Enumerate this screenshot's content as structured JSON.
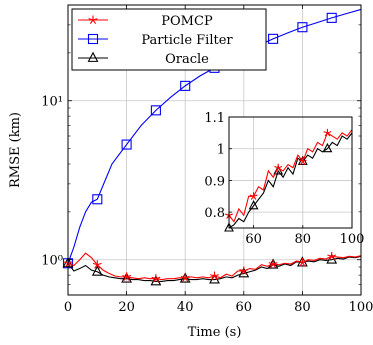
{
  "chart_data": {
    "type": "line",
    "xlabel": "Time (s)",
    "ylabel": "RMSE (km)",
    "xlim": [
      0,
      100
    ],
    "ylim": [
      0.6,
      40
    ],
    "yscale": "log",
    "grid": true,
    "legend_position": "top-left",
    "x_ticks": [
      0,
      20,
      40,
      60,
      80,
      100
    ],
    "x_tick_labels": [
      "0",
      "20",
      "40",
      "60",
      "80",
      "100"
    ],
    "y_ticks": [
      1,
      10
    ],
    "y_tick_labels": [
      "10⁰",
      "10¹"
    ],
    "series": [
      {
        "name": "POMCP",
        "color": "#ff0000",
        "marker": "star",
        "x": [
          0,
          2,
          4,
          6,
          8,
          10,
          12,
          14,
          16,
          18,
          20,
          22,
          24,
          26,
          28,
          30,
          32,
          34,
          36,
          38,
          40,
          42,
          44,
          46,
          48,
          50,
          52,
          54,
          56,
          58,
          60,
          62,
          64,
          66,
          68,
          70,
          72,
          74,
          76,
          78,
          80,
          82,
          84,
          86,
          88,
          90,
          92,
          94,
          96,
          98,
          100
        ],
        "y": [
          0.95,
          0.92,
          1.0,
          1.1,
          1.03,
          0.93,
          0.86,
          0.82,
          0.79,
          0.78,
          0.78,
          0.77,
          0.76,
          0.77,
          0.76,
          0.76,
          0.75,
          0.76,
          0.76,
          0.77,
          0.77,
          0.78,
          0.77,
          0.78,
          0.77,
          0.79,
          0.77,
          0.81,
          0.79,
          0.85,
          0.85,
          0.88,
          0.87,
          0.93,
          0.91,
          0.94,
          0.93,
          0.95,
          0.94,
          0.98,
          0.96,
          1.0,
          0.99,
          1.02,
          1.01,
          1.05,
          1.04,
          1.03,
          1.05,
          1.04,
          1.06
        ],
        "marker_x": [
          0,
          10,
          20,
          30,
          40,
          50,
          60,
          70,
          80,
          90
        ]
      },
      {
        "name": "Particle Filter",
        "color": "#0000ff",
        "marker": "square",
        "x": [
          0,
          2,
          4,
          6,
          8,
          10,
          15,
          20,
          25,
          30,
          35,
          40,
          45,
          50,
          55,
          60,
          65,
          70,
          75,
          80,
          85,
          90,
          95,
          100
        ],
        "y": [
          0.95,
          1.2,
          1.6,
          2.0,
          2.3,
          2.4,
          4.0,
          5.3,
          7.0,
          8.7,
          10.5,
          12.4,
          14.3,
          16.1,
          18.0,
          20.0,
          22.3,
          24.5,
          26.7,
          29.0,
          31.0,
          33.2,
          35.3,
          37.5
        ],
        "marker_x": [
          0,
          10,
          20,
          30,
          40,
          50,
          60,
          70,
          80,
          90
        ]
      },
      {
        "name": "Oracle",
        "color": "#000000",
        "marker": "triangle",
        "x": [
          0,
          2,
          4,
          6,
          8,
          10,
          12,
          14,
          16,
          18,
          20,
          22,
          24,
          26,
          28,
          30,
          32,
          34,
          36,
          38,
          40,
          42,
          44,
          46,
          48,
          50,
          52,
          54,
          56,
          58,
          60,
          62,
          64,
          66,
          68,
          70,
          72,
          74,
          76,
          78,
          80,
          82,
          84,
          86,
          88,
          90,
          92,
          94,
          96,
          98,
          100
        ],
        "y": [
          0.95,
          0.85,
          0.88,
          0.92,
          0.86,
          0.84,
          0.8,
          0.78,
          0.77,
          0.76,
          0.76,
          0.75,
          0.75,
          0.74,
          0.74,
          0.73,
          0.73,
          0.74,
          0.74,
          0.75,
          0.76,
          0.75,
          0.75,
          0.76,
          0.75,
          0.75,
          0.76,
          0.78,
          0.77,
          0.8,
          0.82,
          0.84,
          0.86,
          0.9,
          0.88,
          0.93,
          0.91,
          0.94,
          0.92,
          0.97,
          0.96,
          0.98,
          0.97,
          1.0,
          0.99,
          1.0,
          1.02,
          1.01,
          1.04,
          1.03,
          1.05
        ],
        "marker_x": [
          0,
          10,
          20,
          30,
          40,
          50,
          60,
          70,
          80,
          90
        ]
      }
    ],
    "inset": {
      "xlim": [
        50,
        100
      ],
      "ylim": [
        0.75,
        1.1
      ],
      "x_ticks": [
        60,
        80,
        100
      ],
      "x_tick_labels": [
        "60",
        "80",
        "100"
      ],
      "y_ticks": [
        0.8,
        0.9,
        1.0,
        1.1
      ],
      "y_tick_labels": [
        "0.8",
        "0.9",
        "1",
        "1.1"
      ],
      "grid": true
    }
  }
}
